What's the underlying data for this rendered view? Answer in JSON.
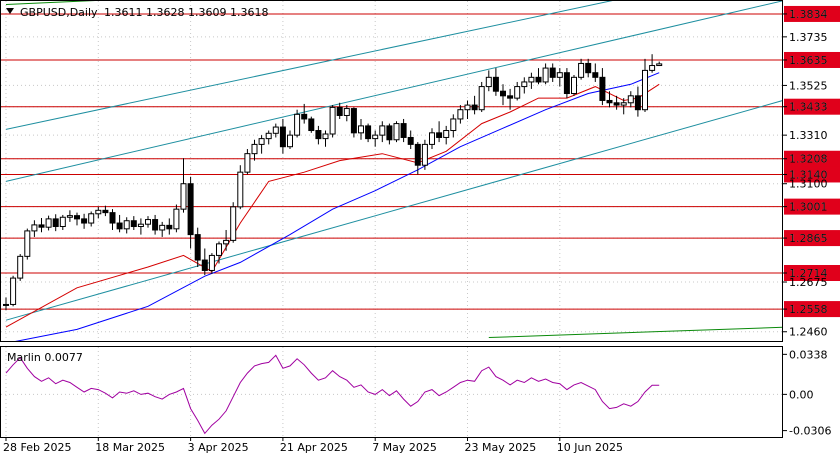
{
  "header": {
    "symbol_timeframe": "GBPUSD,Daily",
    "ohlc": "1.3611  1.3628  1.3609  1.3618",
    "indicator_label": "Marlin 0.0077"
  },
  "colors": {
    "candle": "#000000",
    "level_line": "#cc0000",
    "level_box": "#e0001b",
    "ma_fast": "#d40000",
    "ma_slow": "#0000ff",
    "channel": "#1e8fa0",
    "long_trend": "#0a8a0a",
    "marlin": "#a000a0"
  },
  "chart_data": {
    "type": "candlestick",
    "price_axis_labels": [
      "1.3834",
      "1.3735",
      "1.3635",
      "1.3525",
      "1.3433",
      "1.3310",
      "1.3208",
      "1.3140",
      "1.3100",
      "1.3001",
      "1.2865",
      "1.2714",
      "1.2675",
      "1.2558",
      "1.2460"
    ],
    "levels": [
      "1.3834",
      "1.3635",
      "1.3433",
      "1.3208",
      "1.3140",
      "1.3001",
      "1.2865",
      "1.2714",
      "1.2558"
    ],
    "x_axis_labels": [
      "28 Feb 2025",
      "18 Mar 2025",
      "3 Apr 2025",
      "21 Apr 2025",
      "7 May 2025",
      "23 May 2025",
      "10 Jun 2025"
    ],
    "price_range": [
      1.242,
      1.389
    ],
    "candles": [
      [
        1.2578,
        1.2608,
        1.2553,
        1.2578
      ],
      [
        1.2578,
        1.2702,
        1.257,
        1.2692
      ],
      [
        1.2692,
        1.2796,
        1.268,
        1.2786
      ],
      [
        1.2786,
        1.2906,
        1.2772,
        1.2896
      ],
      [
        1.2896,
        1.2942,
        1.287,
        1.2922
      ],
      [
        1.2922,
        1.2952,
        1.289,
        1.2912
      ],
      [
        1.2912,
        1.2962,
        1.2898,
        1.2948
      ],
      [
        1.2948,
        1.2968,
        1.2895,
        1.2915
      ],
      [
        1.2915,
        1.2965,
        1.29,
        1.2955
      ],
      [
        1.2955,
        1.2985,
        1.2935,
        1.2962
      ],
      [
        1.2962,
        1.2975,
        1.292,
        1.2948
      ],
      [
        1.2948,
        1.297,
        1.2905,
        1.293
      ],
      [
        1.293,
        1.298,
        1.2915,
        1.297
      ],
      [
        1.297,
        1.3,
        1.295,
        1.2985
      ],
      [
        1.2985,
        1.3005,
        1.296,
        1.2975
      ],
      [
        1.2975,
        1.299,
        1.29,
        1.293
      ],
      [
        1.293,
        1.2965,
        1.289,
        1.2905
      ],
      [
        1.2905,
        1.2955,
        1.2885,
        1.294
      ],
      [
        1.294,
        1.296,
        1.29,
        1.2915
      ],
      [
        1.2915,
        1.295,
        1.288,
        1.2925
      ],
      [
        1.2925,
        1.296,
        1.291,
        1.2945
      ],
      [
        1.2945,
        1.2965,
        1.288,
        1.29
      ],
      [
        1.29,
        1.2935,
        1.287,
        1.292
      ],
      [
        1.292,
        1.295,
        1.288,
        1.2905
      ],
      [
        1.2905,
        1.301,
        1.289,
        1.299
      ],
      [
        1.299,
        1.321,
        1.2975,
        1.31
      ],
      [
        1.31,
        1.313,
        1.282,
        1.288
      ],
      [
        1.288,
        1.291,
        1.274,
        1.277
      ],
      [
        1.277,
        1.282,
        1.2705,
        1.2725
      ],
      [
        1.2725,
        1.28,
        1.271,
        1.279
      ],
      [
        1.279,
        1.285,
        1.2755,
        1.284
      ],
      [
        1.284,
        1.29,
        1.281,
        1.2855
      ],
      [
        1.2855,
        1.302,
        1.2845,
        1.3
      ],
      [
        1.3,
        1.318,
        1.299,
        1.315
      ],
      [
        1.315,
        1.325,
        1.314,
        1.323
      ],
      [
        1.323,
        1.329,
        1.32,
        1.327
      ],
      [
        1.327,
        1.331,
        1.323,
        1.3295
      ],
      [
        1.3295,
        1.333,
        1.327,
        1.3318
      ],
      [
        1.3318,
        1.336,
        1.33,
        1.3345
      ],
      [
        1.3345,
        1.338,
        1.323,
        1.326
      ],
      [
        1.326,
        1.333,
        1.325,
        1.331
      ],
      [
        1.331,
        1.342,
        1.33,
        1.34
      ],
      [
        1.34,
        1.3445,
        1.336,
        1.338
      ],
      [
        1.338,
        1.339,
        1.332,
        1.333
      ],
      [
        1.333,
        1.335,
        1.327,
        1.3295
      ],
      [
        1.3295,
        1.333,
        1.326,
        1.3315
      ],
      [
        1.3315,
        1.344,
        1.33,
        1.343
      ],
      [
        1.343,
        1.345,
        1.338,
        1.3395
      ],
      [
        1.3395,
        1.344,
        1.337,
        1.3425
      ],
      [
        1.3425,
        1.343,
        1.33,
        1.332
      ],
      [
        1.332,
        1.338,
        1.329,
        1.335
      ],
      [
        1.335,
        1.336,
        1.328,
        1.3295
      ],
      [
        1.3295,
        1.333,
        1.326,
        1.331
      ],
      [
        1.331,
        1.337,
        1.328,
        1.335
      ],
      [
        1.335,
        1.336,
        1.327,
        1.329
      ],
      [
        1.329,
        1.337,
        1.328,
        1.336
      ],
      [
        1.336,
        1.338,
        1.328,
        1.33
      ],
      [
        1.33,
        1.333,
        1.325,
        1.327
      ],
      [
        1.327,
        1.328,
        1.314,
        1.318
      ],
      [
        1.318,
        1.329,
        1.316,
        1.327
      ],
      [
        1.327,
        1.334,
        1.325,
        1.332
      ],
      [
        1.332,
        1.337,
        1.328,
        1.33
      ],
      [
        1.33,
        1.335,
        1.327,
        1.333
      ],
      [
        1.333,
        1.34,
        1.33,
        1.338
      ],
      [
        1.338,
        1.344,
        1.336,
        1.342
      ],
      [
        1.342,
        1.346,
        1.338,
        1.344
      ],
      [
        1.344,
        1.348,
        1.34,
        1.342
      ],
      [
        1.342,
        1.354,
        1.341,
        1.352
      ],
      [
        1.352,
        1.359,
        1.35,
        1.356
      ],
      [
        1.356,
        1.36,
        1.348,
        1.35
      ],
      [
        1.35,
        1.353,
        1.344,
        1.348
      ],
      [
        1.348,
        1.351,
        1.342,
        1.347
      ],
      [
        1.347,
        1.354,
        1.346,
        1.352
      ],
      [
        1.352,
        1.356,
        1.349,
        1.354
      ],
      [
        1.354,
        1.358,
        1.351,
        1.356
      ],
      [
        1.356,
        1.36,
        1.353,
        1.354
      ],
      [
        1.354,
        1.362,
        1.353,
        1.36
      ],
      [
        1.36,
        1.362,
        1.354,
        1.356
      ],
      [
        1.356,
        1.36,
        1.352,
        1.358
      ],
      [
        1.358,
        1.36,
        1.347,
        1.349
      ],
      [
        1.349,
        1.357,
        1.348,
        1.356
      ],
      [
        1.356,
        1.364,
        1.355,
        1.362
      ],
      [
        1.362,
        1.364,
        1.356,
        1.358
      ],
      [
        1.358,
        1.362,
        1.354,
        1.356
      ],
      [
        1.356,
        1.36,
        1.344,
        1.346
      ],
      [
        1.346,
        1.35,
        1.343,
        1.345
      ],
      [
        1.345,
        1.348,
        1.342,
        1.344
      ],
      [
        1.344,
        1.347,
        1.34,
        1.345
      ],
      [
        1.345,
        1.35,
        1.343,
        1.348
      ],
      [
        1.348,
        1.352,
        1.339,
        1.342
      ],
      [
        1.342,
        1.364,
        1.341,
        1.359
      ],
      [
        1.359,
        1.366,
        1.358,
        1.3611
      ],
      [
        1.3611,
        1.3628,
        1.3609,
        1.3618
      ]
    ],
    "ma_fast": [
      [
        0,
        1.248
      ],
      [
        10,
        1.265
      ],
      [
        20,
        1.274
      ],
      [
        25,
        1.279
      ],
      [
        29,
        1.272
      ],
      [
        33,
        1.293
      ],
      [
        37,
        1.311
      ],
      [
        42,
        1.315
      ],
      [
        47,
        1.32
      ],
      [
        53,
        1.323
      ],
      [
        58,
        1.319
      ],
      [
        62,
        1.324
      ],
      [
        67,
        1.336
      ],
      [
        71,
        1.341
      ],
      [
        75,
        1.347
      ],
      [
        79,
        1.347
      ],
      [
        83,
        1.352
      ],
      [
        87,
        1.346
      ],
      [
        89,
        1.347
      ],
      [
        92,
        1.353
      ]
    ],
    "ma_slow": [
      [
        0,
        1.241
      ],
      [
        10,
        1.247
      ],
      [
        20,
        1.257
      ],
      [
        28,
        1.27
      ],
      [
        33,
        1.276
      ],
      [
        40,
        1.288
      ],
      [
        46,
        1.299
      ],
      [
        52,
        1.307
      ],
      [
        58,
        1.316
      ],
      [
        64,
        1.326
      ],
      [
        70,
        1.334
      ],
      [
        76,
        1.342
      ],
      [
        82,
        1.349
      ],
      [
        88,
        1.353
      ],
      [
        92,
        1.358
      ]
    ],
    "channel_lines": [
      [
        [
          0,
          1.3335
        ],
        [
          92,
          1.3935
        ]
      ],
      [
        [
          0,
          1.311
        ],
        [
          110,
          1.3895
        ]
      ],
      [
        [
          0,
          1.251
        ],
        [
          110,
          1.3465
        ]
      ]
    ],
    "long_trendline": [
      [
        68,
        1.2435
      ],
      [
        110,
        1.248
      ]
    ],
    "top_trendline": [
      [
        0,
        1.3875
      ],
      [
        44,
        1.3935
      ]
    ],
    "marlin": {
      "label": "Marlin 0.0077",
      "axis_labels": [
        "0.0338",
        "0.00",
        "-0.0306"
      ],
      "range": [
        -0.036,
        0.04
      ],
      "values": [
        0.018,
        0.025,
        0.031,
        0.022,
        0.015,
        0.011,
        0.014,
        0.009,
        0.012,
        0.01,
        0.006,
        0.002,
        0.005,
        0.004,
        0.001,
        -0.003,
        0.002,
        0.001,
        0.003,
        0.0,
        0.001,
        -0.002,
        -0.004,
        0.0,
        0.002,
        0.005,
        -0.012,
        -0.022,
        -0.033,
        -0.026,
        -0.021,
        -0.014,
        -0.002,
        0.01,
        0.018,
        0.024,
        0.026,
        0.027,
        0.033,
        0.022,
        0.024,
        0.03,
        0.025,
        0.018,
        0.012,
        0.014,
        0.02,
        0.015,
        0.012,
        0.006,
        0.008,
        0.002,
        0.0,
        0.004,
        -0.001,
        0.003,
        -0.004,
        -0.01,
        -0.006,
        0.002,
        0.004,
        -0.001,
        0.002,
        0.006,
        0.01,
        0.012,
        0.011,
        0.02,
        0.023,
        0.015,
        0.012,
        0.008,
        0.012,
        0.01,
        0.014,
        0.011,
        0.013,
        0.01,
        0.009,
        0.004,
        0.008,
        0.01,
        0.007,
        0.004,
        -0.006,
        -0.012,
        -0.011,
        -0.008,
        -0.01,
        -0.006,
        0.002,
        0.0077,
        0.0077
      ]
    }
  }
}
